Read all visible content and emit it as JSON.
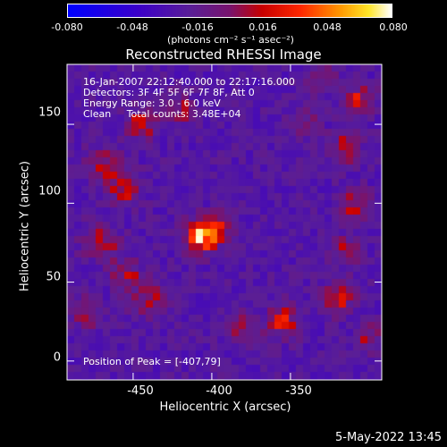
{
  "chart_data": {
    "type": "heatmap",
    "title": "Reconstructed RHESSI Image",
    "xlabel": "Heliocentric X (arcsec)",
    "ylabel": "Heliocentric Y (arcsec)",
    "xlim": [
      -492,
      -292
    ],
    "ylim": [
      -12,
      188
    ],
    "x_ticks": [
      -450,
      -400,
      -350
    ],
    "y_ticks": [
      0,
      50,
      100,
      150
    ],
    "colorbar": {
      "ticks": [
        "-0.080",
        "-0.048",
        "-0.016",
        "0.016",
        "0.048",
        "0.080"
      ],
      "range": [
        -0.08,
        0.08
      ],
      "unit": "(photons cm⁻² s⁻¹ asec⁻²)",
      "colormap": "rainbow-blue-to-white"
    },
    "annotations": {
      "line1": "16-Jan-2007 22:12:40.000 to 22:17:16.000",
      "line2": "Detectors: 3F 4F 5F 6F 7F 8F, Att 0",
      "line3": "Energy Range: 3.0 - 6.0 keV",
      "line4": "Clean     Total counts: 3.48E+04",
      "peak": "Position of Peak = [-407,79]"
    },
    "peak": {
      "x": -407,
      "y": 79,
      "value": 0.08
    },
    "sources": [
      {
        "x": -407,
        "y": 79,
        "amp": 0.08,
        "sigma": 7
      },
      {
        "x": -395,
        "y": 85,
        "amp": 0.035,
        "sigma": 6
      },
      {
        "x": -455,
        "y": 110,
        "amp": 0.045,
        "sigma": 7
      },
      {
        "x": -468,
        "y": 125,
        "amp": 0.03,
        "sigma": 8
      },
      {
        "x": -470,
        "y": 75,
        "amp": 0.035,
        "sigma": 8
      },
      {
        "x": -455,
        "y": 55,
        "amp": 0.032,
        "sigma": 7
      },
      {
        "x": -440,
        "y": 40,
        "amp": 0.03,
        "sigma": 8
      },
      {
        "x": -445,
        "y": 150,
        "amp": 0.038,
        "sigma": 7
      },
      {
        "x": -420,
        "y": 160,
        "amp": 0.03,
        "sigma": 7
      },
      {
        "x": -305,
        "y": 165,
        "amp": 0.045,
        "sigma": 6
      },
      {
        "x": -315,
        "y": 135,
        "amp": 0.035,
        "sigma": 7
      },
      {
        "x": -310,
        "y": 100,
        "amp": 0.038,
        "sigma": 7
      },
      {
        "x": -315,
        "y": 70,
        "amp": 0.03,
        "sigma": 7
      },
      {
        "x": -320,
        "y": 40,
        "amp": 0.04,
        "sigma": 7
      },
      {
        "x": -355,
        "y": 25,
        "amp": 0.042,
        "sigma": 7
      },
      {
        "x": -380,
        "y": 20,
        "amp": 0.03,
        "sigma": 7
      },
      {
        "x": -340,
        "y": 150,
        "amp": 0.025,
        "sigma": 6
      },
      {
        "x": -480,
        "y": 30,
        "amp": 0.028,
        "sigma": 7
      },
      {
        "x": -300,
        "y": 15,
        "amp": 0.03,
        "sigma": 6
      },
      {
        "x": -330,
        "y": 178,
        "amp": 0.028,
        "sigma": 6
      }
    ],
    "background_level": -0.025,
    "grid": false,
    "legend": "none"
  },
  "timestamp": "5-May-2022 13:45"
}
